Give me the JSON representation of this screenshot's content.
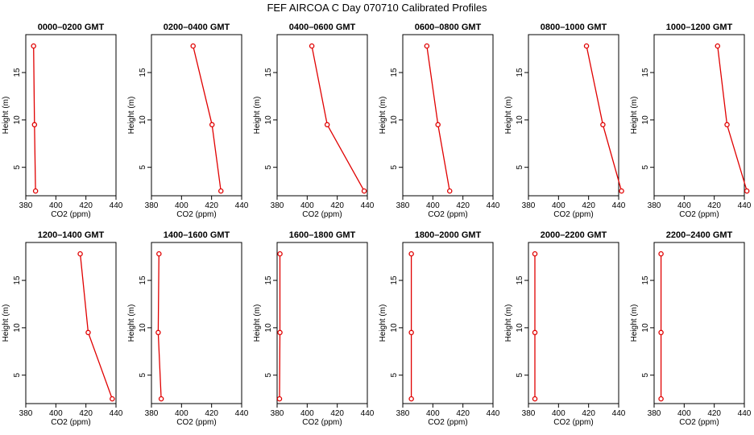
{
  "title": "FEF  AIRCOA C  Day 070710  Calibrated Profiles",
  "chart_data": [
    {
      "type": "line",
      "title": "0000–0200 GMT",
      "xlabel": "CO2 (ppm)",
      "ylabel": "Height (m)",
      "xlim": [
        380,
        440
      ],
      "ylim": [
        2,
        19
      ],
      "xticks": [
        "380",
        "400",
        "420",
        "440"
      ],
      "yticks": [
        "5",
        "10",
        "15"
      ],
      "series": [
        {
          "name": "profile",
          "color": "#e00000",
          "x": [
            386.5,
            385.8,
            385.2
          ],
          "y": [
            2.5,
            9.5,
            17.8
          ]
        }
      ]
    },
    {
      "type": "line",
      "title": "0200–0400 GMT",
      "xlabel": "CO2 (ppm)",
      "ylabel": "Height (m)",
      "xlim": [
        380,
        440
      ],
      "ylim": [
        2,
        19
      ],
      "xticks": [
        "380",
        "400",
        "420",
        "440"
      ],
      "yticks": [
        "5",
        "10",
        "15"
      ],
      "series": [
        {
          "name": "profile",
          "color": "#e00000",
          "x": [
            426.2,
            420.3,
            407.7
          ],
          "y": [
            2.5,
            9.5,
            17.8
          ]
        }
      ]
    },
    {
      "type": "line",
      "title": "0400–0600 GMT",
      "xlabel": "CO2 (ppm)",
      "ylabel": "Height (m)",
      "xlim": [
        380,
        440
      ],
      "ylim": [
        2,
        19
      ],
      "xticks": [
        "380",
        "400",
        "420",
        "440"
      ],
      "yticks": [
        "5",
        "10",
        "15"
      ],
      "series": [
        {
          "name": "profile",
          "color": "#e00000",
          "x": [
            437.9,
            413.3,
            403.1
          ],
          "y": [
            2.5,
            9.5,
            17.8
          ]
        }
      ]
    },
    {
      "type": "line",
      "title": "0600–0800 GMT",
      "xlabel": "CO2 (ppm)",
      "ylabel": "Height (m)",
      "xlim": [
        380,
        440
      ],
      "ylim": [
        2,
        19
      ],
      "xticks": [
        "380",
        "400",
        "420",
        "440"
      ],
      "yticks": [
        "5",
        "10",
        "15"
      ],
      "series": [
        {
          "name": "profile",
          "color": "#e00000",
          "x": [
            411.2,
            403.4,
            396.0
          ],
          "y": [
            2.5,
            9.5,
            17.8
          ]
        }
      ]
    },
    {
      "type": "line",
      "title": "0800–1000 GMT",
      "xlabel": "CO2 (ppm)",
      "ylabel": "Height (m)",
      "xlim": [
        380,
        440
      ],
      "ylim": [
        2,
        19
      ],
      "xticks": [
        "380",
        "400",
        "420",
        "440"
      ],
      "yticks": [
        "5",
        "10",
        "15"
      ],
      "series": [
        {
          "name": "profile",
          "color": "#e00000",
          "x": [
            441.9,
            429.5,
            418.6
          ],
          "y": [
            2.5,
            9.5,
            17.8
          ]
        }
      ]
    },
    {
      "type": "line",
      "title": "1000–1200 GMT",
      "xlabel": "CO2 (ppm)",
      "ylabel": "Height (m)",
      "xlim": [
        380,
        440
      ],
      "ylim": [
        2,
        19
      ],
      "xticks": [
        "380",
        "400",
        "420",
        "440"
      ],
      "yticks": [
        "5",
        "10",
        "15"
      ],
      "series": [
        {
          "name": "profile",
          "color": "#e00000",
          "x": [
            441.7,
            428.5,
            422.2
          ],
          "y": [
            2.5,
            9.5,
            17.8
          ]
        }
      ]
    },
    {
      "type": "line",
      "title": "1200–1400 GMT",
      "xlabel": "CO2 (ppm)",
      "ylabel": "Height (m)",
      "xlim": [
        380,
        440
      ],
      "ylim": [
        2,
        19
      ],
      "xticks": [
        "380",
        "400",
        "420",
        "440"
      ],
      "yticks": [
        "5",
        "10",
        "15"
      ],
      "series": [
        {
          "name": "profile",
          "color": "#e00000",
          "x": [
            437.5,
            421.5,
            416.2
          ],
          "y": [
            2.5,
            9.5,
            17.8
          ]
        }
      ]
    },
    {
      "type": "line",
      "title": "1400–1600 GMT",
      "xlabel": "CO2 (ppm)",
      "ylabel": "Height (m)",
      "xlim": [
        380,
        440
      ],
      "ylim": [
        2,
        19
      ],
      "xticks": [
        "380",
        "400",
        "420",
        "440"
      ],
      "yticks": [
        "5",
        "10",
        "15"
      ],
      "series": [
        {
          "name": "profile",
          "color": "#e00000",
          "x": [
            386.5,
            384.5,
            385.0
          ],
          "y": [
            2.5,
            9.5,
            17.8
          ]
        }
      ]
    },
    {
      "type": "line",
      "title": "1600–1800 GMT",
      "xlabel": "CO2 (ppm)",
      "ylabel": "Height (m)",
      "xlim": [
        380,
        440
      ],
      "ylim": [
        2,
        19
      ],
      "xticks": [
        "380",
        "400",
        "420",
        "440"
      ],
      "yticks": [
        "5",
        "10",
        "15"
      ],
      "series": [
        {
          "name": "profile",
          "color": "#e00000",
          "x": [
            381.6,
            381.9,
            381.9
          ],
          "y": [
            2.5,
            9.5,
            17.8
          ]
        }
      ]
    },
    {
      "type": "line",
      "title": "1800–2000 GMT",
      "xlabel": "CO2 (ppm)",
      "ylabel": "Height (m)",
      "xlim": [
        380,
        440
      ],
      "ylim": [
        2,
        19
      ],
      "xticks": [
        "380",
        "400",
        "420",
        "440"
      ],
      "yticks": [
        "5",
        "10",
        "15"
      ],
      "series": [
        {
          "name": "profile",
          "color": "#e00000",
          "x": [
            385.7,
            385.7,
            385.7
          ],
          "y": [
            2.5,
            9.5,
            17.8
          ]
        }
      ]
    },
    {
      "type": "line",
      "title": "2000–2200 GMT",
      "xlabel": "CO2 (ppm)",
      "ylabel": "Height (m)",
      "xlim": [
        380,
        440
      ],
      "ylim": [
        2,
        19
      ],
      "xticks": [
        "380",
        "400",
        "420",
        "440"
      ],
      "yticks": [
        "5",
        "10",
        "15"
      ],
      "series": [
        {
          "name": "profile",
          "color": "#e00000",
          "x": [
            384.3,
            384.3,
            384.3
          ],
          "y": [
            2.5,
            9.5,
            17.8
          ]
        }
      ]
    },
    {
      "type": "line",
      "title": "2200–2400 GMT",
      "xlabel": "CO2 (ppm)",
      "ylabel": "Height (m)",
      "xlim": [
        380,
        440
      ],
      "ylim": [
        2,
        19
      ],
      "xticks": [
        "380",
        "400",
        "420",
        "440"
      ],
      "yticks": [
        "5",
        "10",
        "15"
      ],
      "series": [
        {
          "name": "profile",
          "color": "#e00000",
          "x": [
            384.6,
            384.6,
            384.6
          ],
          "y": [
            2.5,
            9.5,
            17.8
          ]
        }
      ]
    }
  ]
}
